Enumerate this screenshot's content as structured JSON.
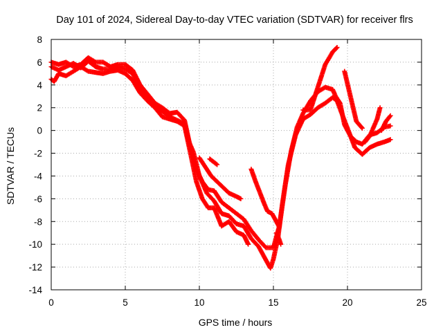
{
  "chart_data": {
    "type": "scatter",
    "title": "Day 101 of 2024, Sidereal Day-to-day VTEC variation (SDTVAR) for receiver flrs",
    "xlabel": "GPS time / hours",
    "ylabel": "SDTVAR / TECUs",
    "xlim": [
      0,
      25
    ],
    "ylim": [
      -14,
      8
    ],
    "xticks": [
      0,
      5,
      10,
      15,
      20,
      25
    ],
    "yticks": [
      -14,
      -12,
      -10,
      -8,
      -6,
      -4,
      -2,
      0,
      2,
      4,
      6,
      8
    ],
    "grid": true,
    "marker": "+",
    "color": "#ff0000",
    "series": [
      {
        "points": [
          [
            0.0,
            5.6
          ],
          [
            0.5,
            5.3
          ],
          [
            1.0,
            5.6
          ],
          [
            1.5,
            5.9
          ],
          [
            2.0,
            5.5
          ],
          [
            2.5,
            6.1
          ],
          [
            3.0,
            5.6
          ],
          [
            3.5,
            5.4
          ],
          [
            4.0,
            5.4
          ],
          [
            4.5,
            5.6
          ],
          [
            5.0,
            5.4
          ],
          [
            5.5,
            5.0
          ],
          [
            6.0,
            3.6
          ],
          [
            6.5,
            3.0
          ],
          [
            7.0,
            2.2
          ],
          [
            7.5,
            1.7
          ],
          [
            8.0,
            1.2
          ],
          [
            8.5,
            0.9
          ],
          [
            9.0,
            0.6
          ],
          [
            9.3,
            -1.0
          ],
          [
            9.6,
            -1.9
          ],
          [
            10.0,
            -4.0
          ],
          [
            10.5,
            -5.5
          ],
          [
            11.0,
            -6.2
          ],
          [
            11.5,
            -7.3
          ],
          [
            12.0,
            -7.5
          ],
          [
            12.5,
            -8.2
          ],
          [
            13.0,
            -8.4
          ],
          [
            13.5,
            -9.5
          ],
          [
            14.0,
            -10.2
          ],
          [
            14.5,
            -11.4
          ],
          [
            14.8,
            -12.1
          ],
          [
            15.0,
            -11.3
          ],
          [
            15.3,
            -9.5
          ],
          [
            15.6,
            -6.5
          ],
          [
            16.0,
            -3.0
          ],
          [
            16.5,
            -0.4
          ],
          [
            17.0,
            1.0
          ],
          [
            17.5,
            1.4
          ],
          [
            18.0,
            2.0
          ],
          [
            18.5,
            2.4
          ],
          [
            19.0,
            2.9
          ],
          [
            19.3,
            2.6
          ],
          [
            19.7,
            1.2
          ],
          [
            20.0,
            0.2
          ],
          [
            20.5,
            -1.5
          ],
          [
            21.0,
            -2.1
          ],
          [
            21.5,
            -1.5
          ],
          [
            22.0,
            -1.2
          ],
          [
            22.5,
            -1.0
          ],
          [
            22.9,
            -0.8
          ]
        ]
      },
      {
        "points": [
          [
            0.0,
            6.0
          ],
          [
            0.5,
            5.8
          ],
          [
            1.0,
            6.0
          ],
          [
            1.5,
            5.6
          ],
          [
            2.0,
            5.8
          ],
          [
            2.5,
            6.4
          ],
          [
            3.0,
            6.0
          ],
          [
            3.5,
            6.0
          ],
          [
            4.0,
            5.6
          ],
          [
            4.5,
            5.8
          ],
          [
            5.0,
            5.8
          ],
          [
            5.5,
            5.3
          ],
          [
            6.0,
            4.0
          ],
          [
            6.5,
            3.2
          ],
          [
            7.0,
            2.4
          ],
          [
            7.5,
            2.0
          ],
          [
            8.0,
            1.5
          ],
          [
            8.5,
            1.6
          ],
          [
            9.0,
            0.9
          ],
          [
            9.4,
            -1.5
          ],
          [
            9.8,
            -3.4
          ],
          [
            10.2,
            -4.5
          ],
          [
            10.6,
            -5.2
          ],
          [
            11.0,
            -5.3
          ],
          [
            11.5,
            -6.3
          ],
          [
            12.0,
            -6.8
          ],
          [
            12.5,
            -7.3
          ],
          [
            13.0,
            -7.8
          ],
          [
            13.5,
            -8.8
          ],
          [
            14.0,
            -9.6
          ],
          [
            14.5,
            -10.3
          ],
          [
            15.0,
            -10.3
          ],
          [
            15.4,
            -8.4
          ],
          [
            15.8,
            -4.8
          ],
          [
            16.2,
            -1.8
          ],
          [
            16.6,
            0.3
          ],
          [
            17.0,
            1.5
          ],
          [
            17.5,
            2.6
          ],
          [
            18.0,
            3.4
          ],
          [
            18.5,
            3.8
          ],
          [
            19.0,
            3.6
          ],
          [
            19.2,
            3.0
          ],
          [
            19.5,
            2.4
          ],
          [
            19.8,
            0.5
          ],
          [
            20.2,
            -0.5
          ],
          [
            20.6,
            -1.0
          ],
          [
            21.0,
            -1.2
          ],
          [
            21.5,
            -0.4
          ],
          [
            22.0,
            -0.2
          ],
          [
            22.5,
            0.3
          ],
          [
            22.9,
            0.4
          ]
        ]
      },
      {
        "points": [
          [
            0.0,
            4.5
          ],
          [
            0.2,
            4.3
          ],
          [
            0.5,
            5.0
          ],
          [
            1.0,
            4.8
          ],
          [
            1.5,
            5.2
          ],
          [
            2.0,
            5.6
          ],
          [
            2.5,
            5.2
          ],
          [
            3.0,
            5.1
          ],
          [
            3.5,
            5.0
          ],
          [
            4.0,
            5.2
          ],
          [
            4.5,
            5.3
          ],
          [
            5.0,
            5.0
          ],
          [
            5.5,
            4.4
          ],
          [
            6.0,
            3.3
          ],
          [
            6.5,
            2.6
          ],
          [
            7.0,
            2.0
          ],
          [
            7.5,
            1.2
          ],
          [
            8.0,
            1.0
          ],
          [
            8.5,
            0.8
          ],
          [
            9.0,
            0.4
          ],
          [
            9.4,
            -2.0
          ],
          [
            9.8,
            -4.5
          ],
          [
            10.2,
            -6.0
          ],
          [
            10.6,
            -6.8
          ],
          [
            11.0,
            -6.8
          ],
          [
            11.5,
            -8.4
          ],
          [
            12.0,
            -8.0
          ],
          [
            12.5,
            -8.9
          ],
          [
            13.0,
            -9.2
          ],
          [
            13.3,
            -10.0
          ]
        ]
      },
      {
        "points": [
          [
            10.0,
            -2.4
          ],
          [
            10.4,
            -3.2
          ],
          [
            10.8,
            -4.0
          ],
          [
            11.2,
            -4.5
          ],
          [
            11.6,
            -5.0
          ],
          [
            12.0,
            -5.5
          ],
          [
            12.5,
            -5.8
          ],
          [
            12.8,
            -6.0
          ]
        ]
      },
      {
        "points": [
          [
            10.7,
            -2.5
          ],
          [
            11.2,
            -3.0
          ]
        ]
      },
      {
        "points": [
          [
            13.5,
            -3.4
          ],
          [
            13.8,
            -4.5
          ],
          [
            14.1,
            -5.5
          ],
          [
            14.4,
            -6.5
          ],
          [
            14.6,
            -7.1
          ],
          [
            14.9,
            -7.3
          ],
          [
            15.2,
            -8.0
          ],
          [
            15.4,
            -8.5
          ]
        ]
      },
      {
        "points": [
          [
            15.2,
            -9.0
          ],
          [
            15.4,
            -9.6
          ],
          [
            15.5,
            -10.0
          ]
        ]
      },
      {
        "points": [
          [
            17.0,
            1.8
          ],
          [
            17.5,
            1.8
          ],
          [
            18.0,
            3.8
          ],
          [
            18.5,
            5.8
          ],
          [
            19.0,
            6.9
          ],
          [
            19.3,
            7.3
          ]
        ]
      },
      {
        "points": [
          [
            19.8,
            5.2
          ],
          [
            20.2,
            3.0
          ],
          [
            20.6,
            0.8
          ],
          [
            21.0,
            0.2
          ]
        ]
      },
      {
        "points": [
          [
            21.2,
            -1.0
          ],
          [
            21.5,
            -0.5
          ],
          [
            21.8,
            0.4
          ],
          [
            22.0,
            1.0
          ],
          [
            22.2,
            2.0
          ]
        ]
      },
      {
        "points": [
          [
            22.3,
            0.0
          ],
          [
            22.6,
            0.8
          ],
          [
            22.9,
            1.3
          ]
        ]
      }
    ]
  }
}
